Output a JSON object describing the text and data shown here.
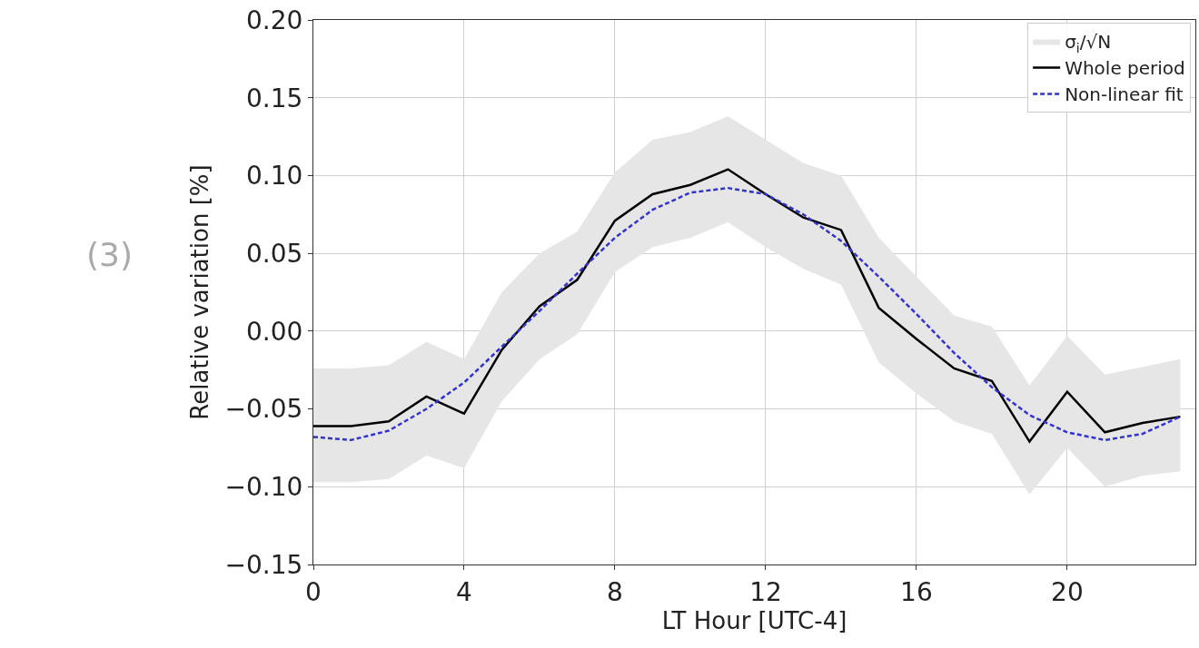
{
  "chart_data": {
    "type": "line",
    "xlabel": "LT Hour [UTC-4]",
    "ylabel": "Relative variation [%]",
    "annotations": [
      "(3)"
    ],
    "x": [
      0,
      1,
      2,
      3,
      4,
      5,
      6,
      7,
      8,
      9,
      10,
      11,
      12,
      13,
      14,
      15,
      16,
      17,
      18,
      19,
      20,
      21,
      22,
      23
    ],
    "series": [
      {
        "name": "Whole period",
        "color": "#000000",
        "line_style": "solid",
        "values": [
          -0.061,
          -0.061,
          -0.058,
          -0.042,
          -0.053,
          -0.012,
          0.016,
          0.033,
          0.071,
          0.088,
          0.094,
          0.104,
          0.088,
          0.073,
          0.065,
          0.015,
          -0.005,
          -0.024,
          -0.032,
          -0.071,
          -0.039,
          -0.065,
          -0.059,
          -0.055
        ]
      },
      {
        "name": "Non-linear fit",
        "color": "#3333cc",
        "line_style": "dashed",
        "values": [
          -0.068,
          -0.07,
          -0.064,
          -0.05,
          -0.033,
          -0.01,
          0.013,
          0.037,
          0.06,
          0.078,
          0.089,
          0.092,
          0.088,
          0.075,
          0.058,
          0.035,
          0.011,
          -0.014,
          -0.036,
          -0.054,
          -0.065,
          -0.07,
          -0.066,
          -0.055
        ]
      },
      {
        "name": "σ$_{i}$/√N",
        "type": "area",
        "color": "#e6e6e6",
        "values": [
          null,
          null,
          null,
          null,
          null,
          null,
          null,
          null,
          null,
          null,
          null,
          null,
          null,
          null,
          null,
          null,
          null,
          null,
          null,
          null,
          null,
          null,
          null,
          null
        ],
        "upper": [
          -0.024,
          -0.024,
          -0.022,
          -0.007,
          -0.018,
          0.025,
          0.05,
          0.064,
          0.102,
          0.123,
          0.128,
          0.138,
          0.123,
          0.108,
          0.1,
          0.06,
          0.035,
          0.01,
          0.003,
          -0.035,
          -0.003,
          -0.028,
          -0.023,
          -0.018
        ],
        "lower": [
          -0.097,
          -0.097,
          -0.095,
          -0.08,
          -0.088,
          -0.045,
          -0.018,
          -0.002,
          0.038,
          0.054,
          0.06,
          0.07,
          0.054,
          0.04,
          0.03,
          -0.02,
          -0.04,
          -0.058,
          -0.066,
          -0.105,
          -0.075,
          -0.1,
          -0.093,
          -0.09
        ]
      }
    ],
    "xlim": [
      0,
      23.4
    ],
    "xticks": [
      0,
      4,
      8,
      12,
      16,
      20
    ],
    "ylim": [
      -0.15,
      0.2
    ],
    "yticks": [
      {
        "value": -0.15,
        "label": "−0.15"
      },
      {
        "value": -0.1,
        "label": "−0.10"
      },
      {
        "value": -0.05,
        "label": "−0.05"
      },
      {
        "value": 0,
        "label": "0.00"
      },
      {
        "value": 0.05,
        "label": "0.05"
      },
      {
        "value": 0.1,
        "label": "0.10"
      },
      {
        "value": 0.15,
        "label": "0.15"
      },
      {
        "value": 0.2,
        "label": "0.20"
      }
    ],
    "grid": true,
    "legend": "top right",
    "marker": "none"
  }
}
